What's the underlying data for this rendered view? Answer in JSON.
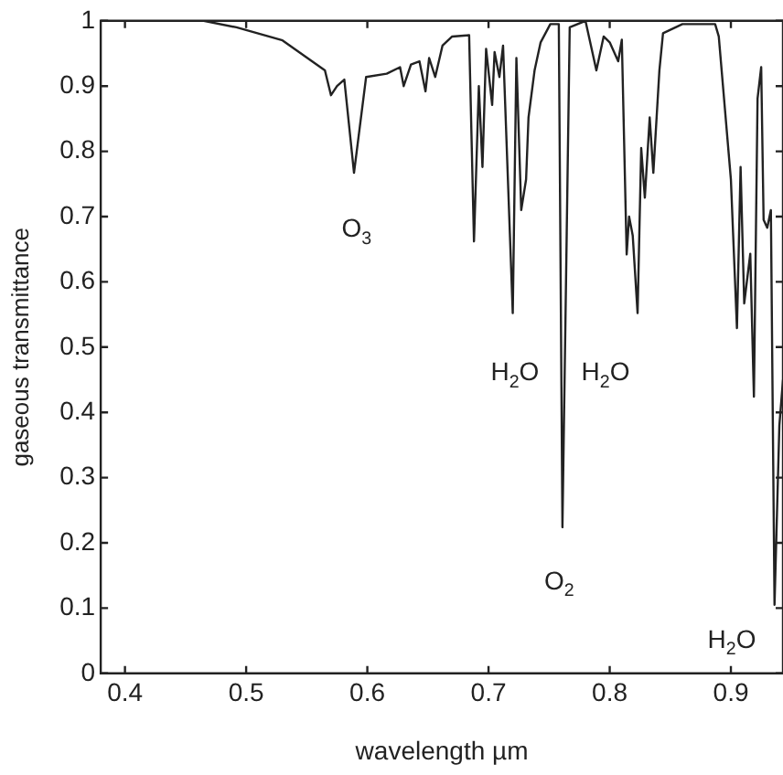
{
  "chart_data": {
    "type": "line",
    "xlabel": "wavelength µm",
    "ylabel": "gaseous transmittance",
    "xlim": [
      0.38,
      0.943
    ],
    "ylim": [
      0,
      1
    ],
    "xticks": [
      0.4,
      0.5,
      0.6,
      0.7,
      0.8,
      0.9
    ],
    "yticks": [
      0,
      0.1,
      0.2,
      0.3,
      0.4,
      0.5,
      0.6,
      0.7,
      0.8,
      0.9,
      1
    ],
    "grid": false,
    "marker": "none",
    "line_style": "solid",
    "series": [
      {
        "color": "#222222",
        "x": [
          0.381,
          0.465,
          0.492,
          0.53,
          0.565,
          0.57,
          0.575,
          0.581,
          0.589,
          0.599,
          0.616,
          0.627,
          0.63,
          0.636,
          0.643,
          0.648,
          0.651,
          0.656,
          0.662,
          0.67,
          0.684,
          0.688,
          0.692,
          0.695,
          0.698,
          0.703,
          0.705,
          0.709,
          0.712,
          0.72,
          0.723,
          0.727,
          0.731,
          0.733,
          0.738,
          0.743,
          0.751,
          0.758,
          0.761,
          0.767,
          0.78,
          0.789,
          0.795,
          0.8,
          0.807,
          0.81,
          0.814,
          0.816,
          0.819,
          0.823,
          0.826,
          0.829,
          0.833,
          0.836,
          0.841,
          0.844,
          0.86,
          0.887,
          0.89,
          0.9,
          0.905,
          0.908,
          0.911,
          0.916,
          0.919,
          0.922,
          0.925,
          0.927,
          0.93,
          0.933,
          0.936,
          0.94,
          0.943
        ],
        "values": [
          1,
          1,
          0.99,
          0.97,
          0.924,
          0.886,
          0.9,
          0.91,
          0.767,
          0.914,
          0.919,
          0.929,
          0.9,
          0.933,
          0.938,
          0.892,
          0.943,
          0.914,
          0.962,
          0.976,
          0.978,
          0.662,
          0.9,
          0.776,
          0.957,
          0.871,
          0.952,
          0.914,
          0.962,
          0.552,
          0.943,
          0.71,
          0.757,
          0.852,
          0.924,
          0.967,
          0.995,
          0.995,
          0.224,
          0.99,
          1,
          0.924,
          0.976,
          0.967,
          0.938,
          0.971,
          0.642,
          0.7,
          0.671,
          0.552,
          0.805,
          0.729,
          0.852,
          0.767,
          0.924,
          0.981,
          0.995,
          0.995,
          0.976,
          0.757,
          0.529,
          0.776,
          0.567,
          0.643,
          0.424,
          0.881,
          0.929,
          0.695,
          0.683,
          0.71,
          0.105,
          0.38,
          0.45
        ]
      }
    ],
    "annotations": [
      "O$_{3}$",
      "H$_{2}$O",
      "H$_{2}$O",
      "O$_{2}$",
      "H$_{2}$O"
    ]
  }
}
